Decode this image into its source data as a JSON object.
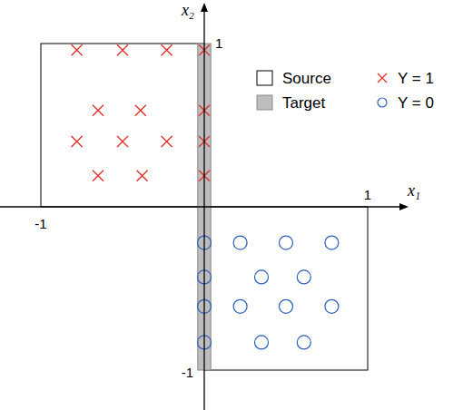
{
  "chart_data": {
    "type": "scatter",
    "x_label": "x₁",
    "y_label": "x₂",
    "xlim": [
      -1.25,
      1.25
    ],
    "ylim": [
      -1.25,
      1.25
    ],
    "xticks": [
      -1,
      1
    ],
    "yticks": [
      -1,
      1
    ],
    "legend": "upper right",
    "regions": [
      {
        "name": "Source",
        "color": "#ffffff",
        "x": [
          -1,
          0
        ],
        "y": [
          0,
          1
        ]
      },
      {
        "name": "Source",
        "color": "#ffffff",
        "x": [
          0,
          1
        ],
        "y": [
          -1,
          0
        ]
      },
      {
        "name": "Target",
        "color": "#bdbdbd",
        "x": [
          -0.04,
          0.04
        ],
        "y": [
          -1,
          1
        ]
      }
    ],
    "series": [
      {
        "name": "Y = 1",
        "color": "#e0312c",
        "marker": "x",
        "x": [
          -0.78,
          -0.5,
          -0.23,
          0.0,
          -0.65,
          -0.39,
          0.0,
          -0.78,
          -0.5,
          -0.23,
          0.0,
          -0.65,
          -0.38,
          0.0
        ],
        "values": [
          0.96,
          0.96,
          0.96,
          0.96,
          0.59,
          0.59,
          0.59,
          0.4,
          0.4,
          0.4,
          0.4,
          0.19,
          0.19,
          0.19
        ]
      },
      {
        "name": "Y = 0",
        "color": "#2f5fb8",
        "marker": "o",
        "x": [
          0.0,
          0.22,
          0.5,
          0.78,
          0.0,
          0.35,
          0.61,
          0.0,
          0.22,
          0.5,
          0.78,
          0.0,
          0.35,
          0.61
        ],
        "values": [
          -0.22,
          -0.22,
          -0.22,
          -0.22,
          -0.43,
          -0.43,
          -0.43,
          -0.61,
          -0.61,
          -0.61,
          -0.61,
          -0.83,
          -0.83,
          -0.83
        ]
      }
    ]
  }
}
